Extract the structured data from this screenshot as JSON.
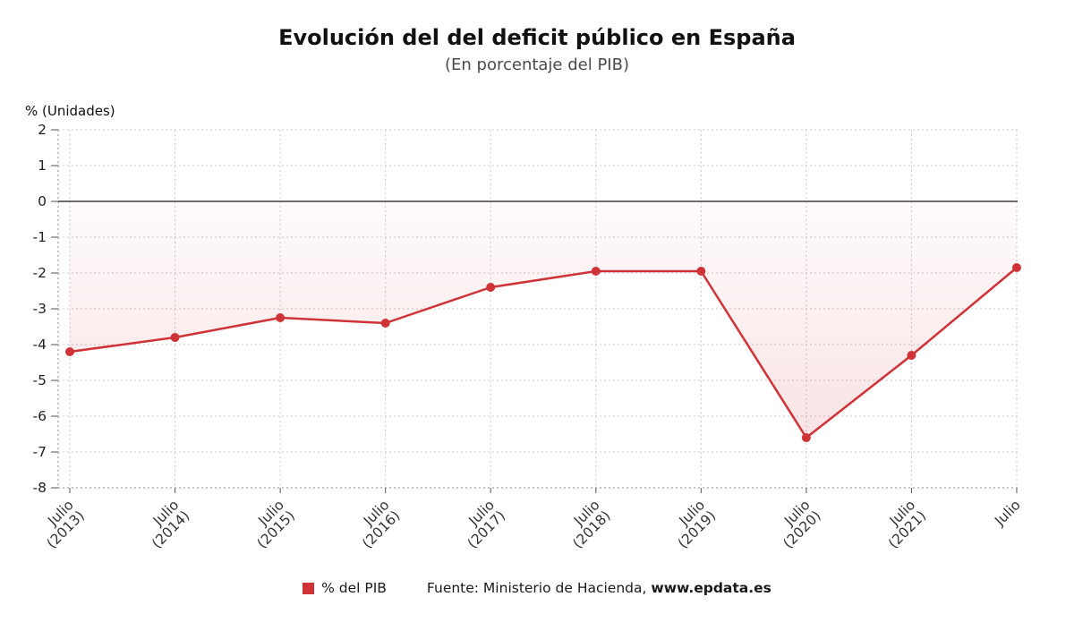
{
  "page": {
    "title": "Evolución del del deficit público en España",
    "subtitle": "(En porcentaje del PIB)",
    "y_axis_unit_label": "% (Unidades)"
  },
  "legend": {
    "series_label": "% del PIB",
    "source_text": "Fuente: Ministerio de Hacienda,",
    "source_site": "www.epdata.es"
  },
  "chart_data": {
    "type": "line",
    "title": "Evolución del del deficit público en España",
    "subtitle": "(En porcentaje del PIB)",
    "ylabel": "% (Unidades)",
    "categories": [
      {
        "label": "Julio",
        "year": "(2013)"
      },
      {
        "label": "Julio",
        "year": "(2014)"
      },
      {
        "label": "Julio",
        "year": "(2015)"
      },
      {
        "label": "Julio",
        "year": "(2016)"
      },
      {
        "label": "Julio",
        "year": "(2017)"
      },
      {
        "label": "Julio",
        "year": "(2018)"
      },
      {
        "label": "Julio",
        "year": "(2019)"
      },
      {
        "label": "Julio",
        "year": "(2020)"
      },
      {
        "label": "Julio",
        "year": "(2021)"
      },
      {
        "label": "Julio",
        "year": ""
      }
    ],
    "series": [
      {
        "name": "% del PIB",
        "color": "#cf3338",
        "values": [
          -4.2,
          -3.8,
          -3.25,
          -3.4,
          -2.4,
          -1.95,
          -1.95,
          -6.6,
          -4.3,
          -1.85
        ]
      }
    ],
    "ylim": [
      -8,
      2
    ],
    "yticks": [
      2,
      1,
      0,
      -1,
      -2,
      -3,
      -4,
      -5,
      -6,
      -7,
      -8
    ],
    "grid": true,
    "zero_line": true,
    "legend_position": "bottom",
    "grid_color": "#c9c9c9",
    "zero_line_color": "#3d3d3d"
  }
}
